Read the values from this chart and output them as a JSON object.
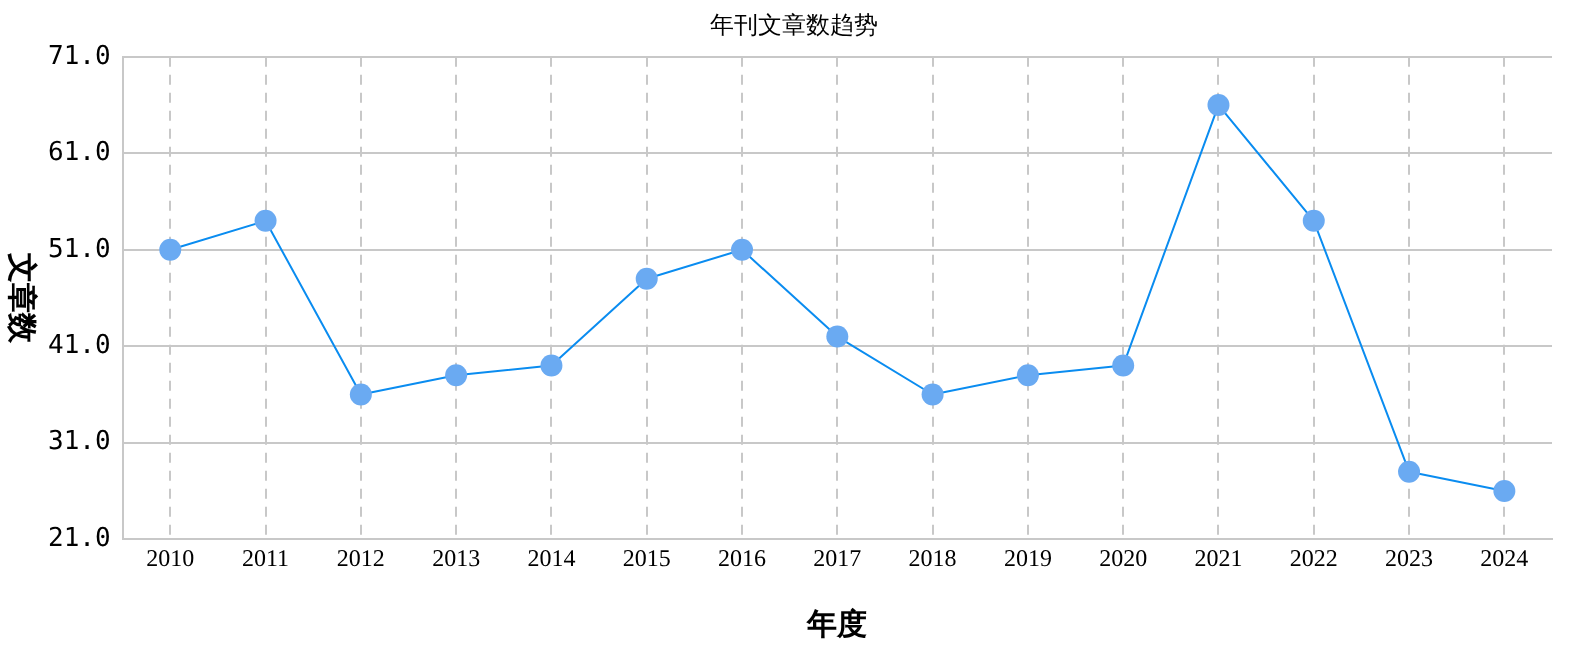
{
  "chart_data": {
    "type": "line",
    "title": "年刊文章数趋势",
    "xlabel": "年度",
    "ylabel": "文章数",
    "categories": [
      "2010",
      "2011",
      "2012",
      "2013",
      "2014",
      "2015",
      "2016",
      "2017",
      "2018",
      "2019",
      "2020",
      "2021",
      "2022",
      "2023",
      "2024"
    ],
    "series": [
      {
        "color": "#0a8cf0",
        "values": [
          51,
          54,
          36,
          38,
          39,
          48,
          51,
          42,
          36,
          38,
          39,
          66,
          54,
          28,
          26
        ]
      }
    ],
    "ylim": [
      21,
      71
    ],
    "yticks": [
      {
        "value": 21,
        "label": "21.0"
      },
      {
        "value": 31,
        "label": "31.0"
      },
      {
        "value": 41,
        "label": "41.0"
      },
      {
        "value": 51,
        "label": "51.0"
      },
      {
        "value": 61,
        "label": "61.0"
      },
      {
        "value": 71,
        "label": "71.0"
      }
    ],
    "grid": true,
    "legend": false,
    "marker": "circle",
    "line_style": "solid"
  }
}
